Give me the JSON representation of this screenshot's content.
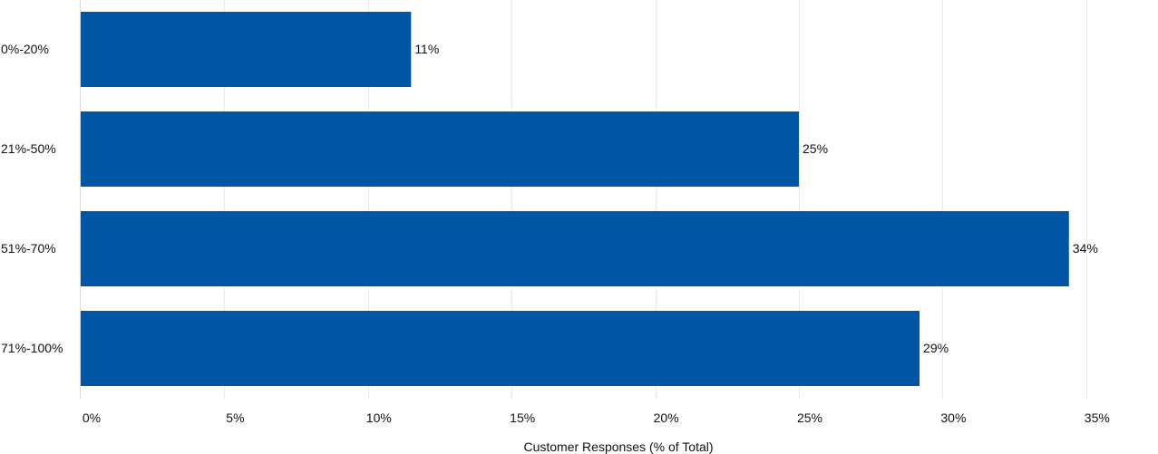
{
  "chart_data": {
    "type": "bar",
    "orientation": "horizontal",
    "title": "",
    "xlabel": "Customer Responses (% of Total)",
    "ylabel": "",
    "categories": [
      "0%-20%",
      "21%-50%",
      "51%-70%",
      "71%-100%"
    ],
    "values": [
      11.5,
      25.0,
      34.4,
      29.2
    ],
    "value_labels": [
      "11%",
      "25%",
      "34%",
      "29%"
    ],
    "x_ticks": [
      0,
      5,
      10,
      15,
      20,
      25,
      30,
      35
    ],
    "x_tick_labels": [
      "0%",
      "5%",
      "10%",
      "15%",
      "20%",
      "25%",
      "30%",
      "35%"
    ],
    "xlim": [
      0,
      37.5
    ],
    "grid": "vertical-light",
    "legend": "none",
    "bar_color": "#0055A5",
    "grid_color": "#EBEBEB"
  }
}
